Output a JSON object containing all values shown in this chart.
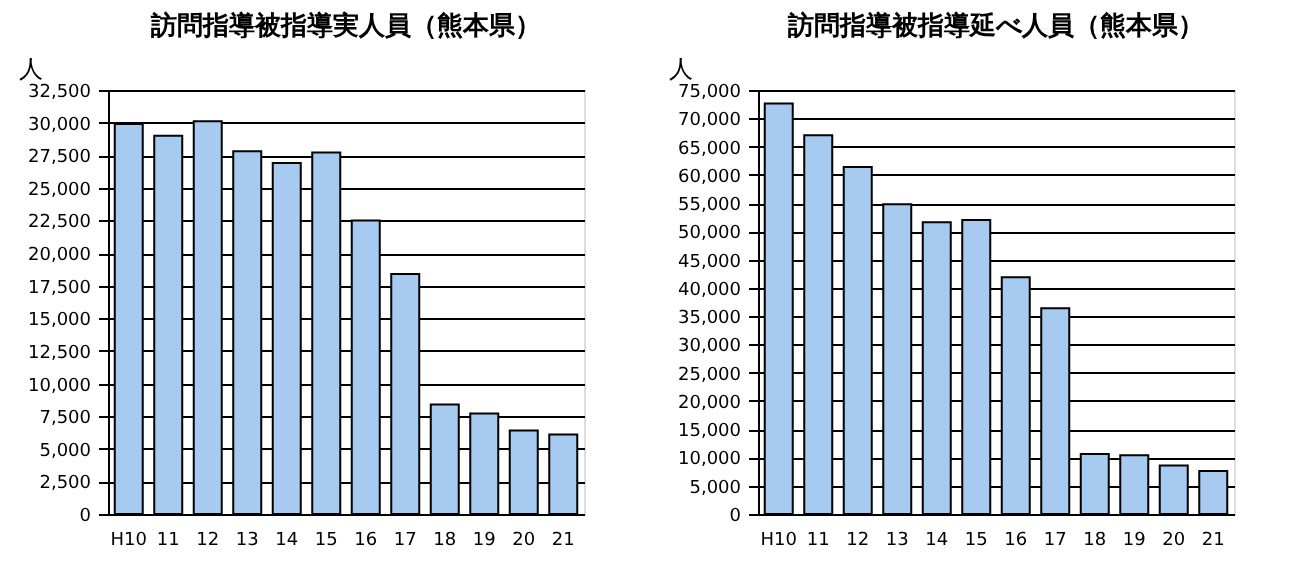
{
  "chart_data": [
    {
      "type": "bar",
      "title": "訪問指導被指導実人員（熊本県）",
      "ylabel": "人",
      "categories": [
        "H10",
        "11",
        "12",
        "13",
        "14",
        "15",
        "16",
        "17",
        "18",
        "19",
        "20",
        "21"
      ],
      "series": [
        {
          "color": "#a6caf0",
          "values": [
            29900,
            29000,
            30100,
            27800,
            26900,
            27700,
            22500,
            18400,
            8400,
            7700,
            6400,
            6100
          ]
        }
      ],
      "ylim": [
        0,
        32500
      ],
      "yticks": [
        0,
        {
          "value": 2500,
          "label": "2,500"
        },
        {
          "value": 5000,
          "label": "5,000"
        },
        {
          "value": 7500,
          "label": "7,500"
        },
        {
          "value": 10000,
          "label": "10,000"
        },
        {
          "value": 12500,
          "label": "12,500"
        },
        {
          "value": 15000,
          "label": "15,000"
        },
        {
          "value": 17500,
          "label": "17,500"
        },
        {
          "value": 20000,
          "label": "20,000"
        },
        {
          "value": 22500,
          "label": "22,500"
        },
        {
          "value": 25000,
          "label": "25,000"
        },
        {
          "value": 27500,
          "label": "27,500"
        },
        {
          "value": 30000,
          "label": "30,000"
        },
        {
          "value": 32500,
          "label": "32,500"
        }
      ],
      "grid": "y",
      "legend": false
    },
    {
      "type": "bar",
      "title": "訪問指導被指導延べ人員（熊本県）",
      "ylabel": "人",
      "categories": [
        "H10",
        "11",
        "12",
        "13",
        "14",
        "15",
        "16",
        "17",
        "18",
        "19",
        "20",
        "21"
      ],
      "series": [
        {
          "color": "#a6caf0",
          "values": [
            72600,
            67000,
            61400,
            54800,
            51600,
            52000,
            41900,
            36400,
            10600,
            10400,
            8600,
            7600
          ]
        }
      ],
      "ylim": [
        0,
        75000
      ],
      "yticks": [
        0,
        {
          "value": 5000,
          "label": "5,000"
        },
        {
          "value": 10000,
          "label": "10,000"
        },
        {
          "value": 15000,
          "label": "15,000"
        },
        {
          "value": 20000,
          "label": "20,000"
        },
        {
          "value": 25000,
          "label": "25,000"
        },
        {
          "value": 30000,
          "label": "30,000"
        },
        {
          "value": 35000,
          "label": "35,000"
        },
        {
          "value": 40000,
          "label": "40,000"
        },
        {
          "value": 45000,
          "label": "45,000"
        },
        {
          "value": 50000,
          "label": "50,000"
        },
        {
          "value": 55000,
          "label": "55,000"
        },
        {
          "value": 60000,
          "label": "60,000"
        },
        {
          "value": 65000,
          "label": "65,000"
        },
        {
          "value": 70000,
          "label": "70,000"
        },
        {
          "value": 75000,
          "label": "75,000"
        }
      ],
      "grid": "y",
      "legend": false
    }
  ]
}
